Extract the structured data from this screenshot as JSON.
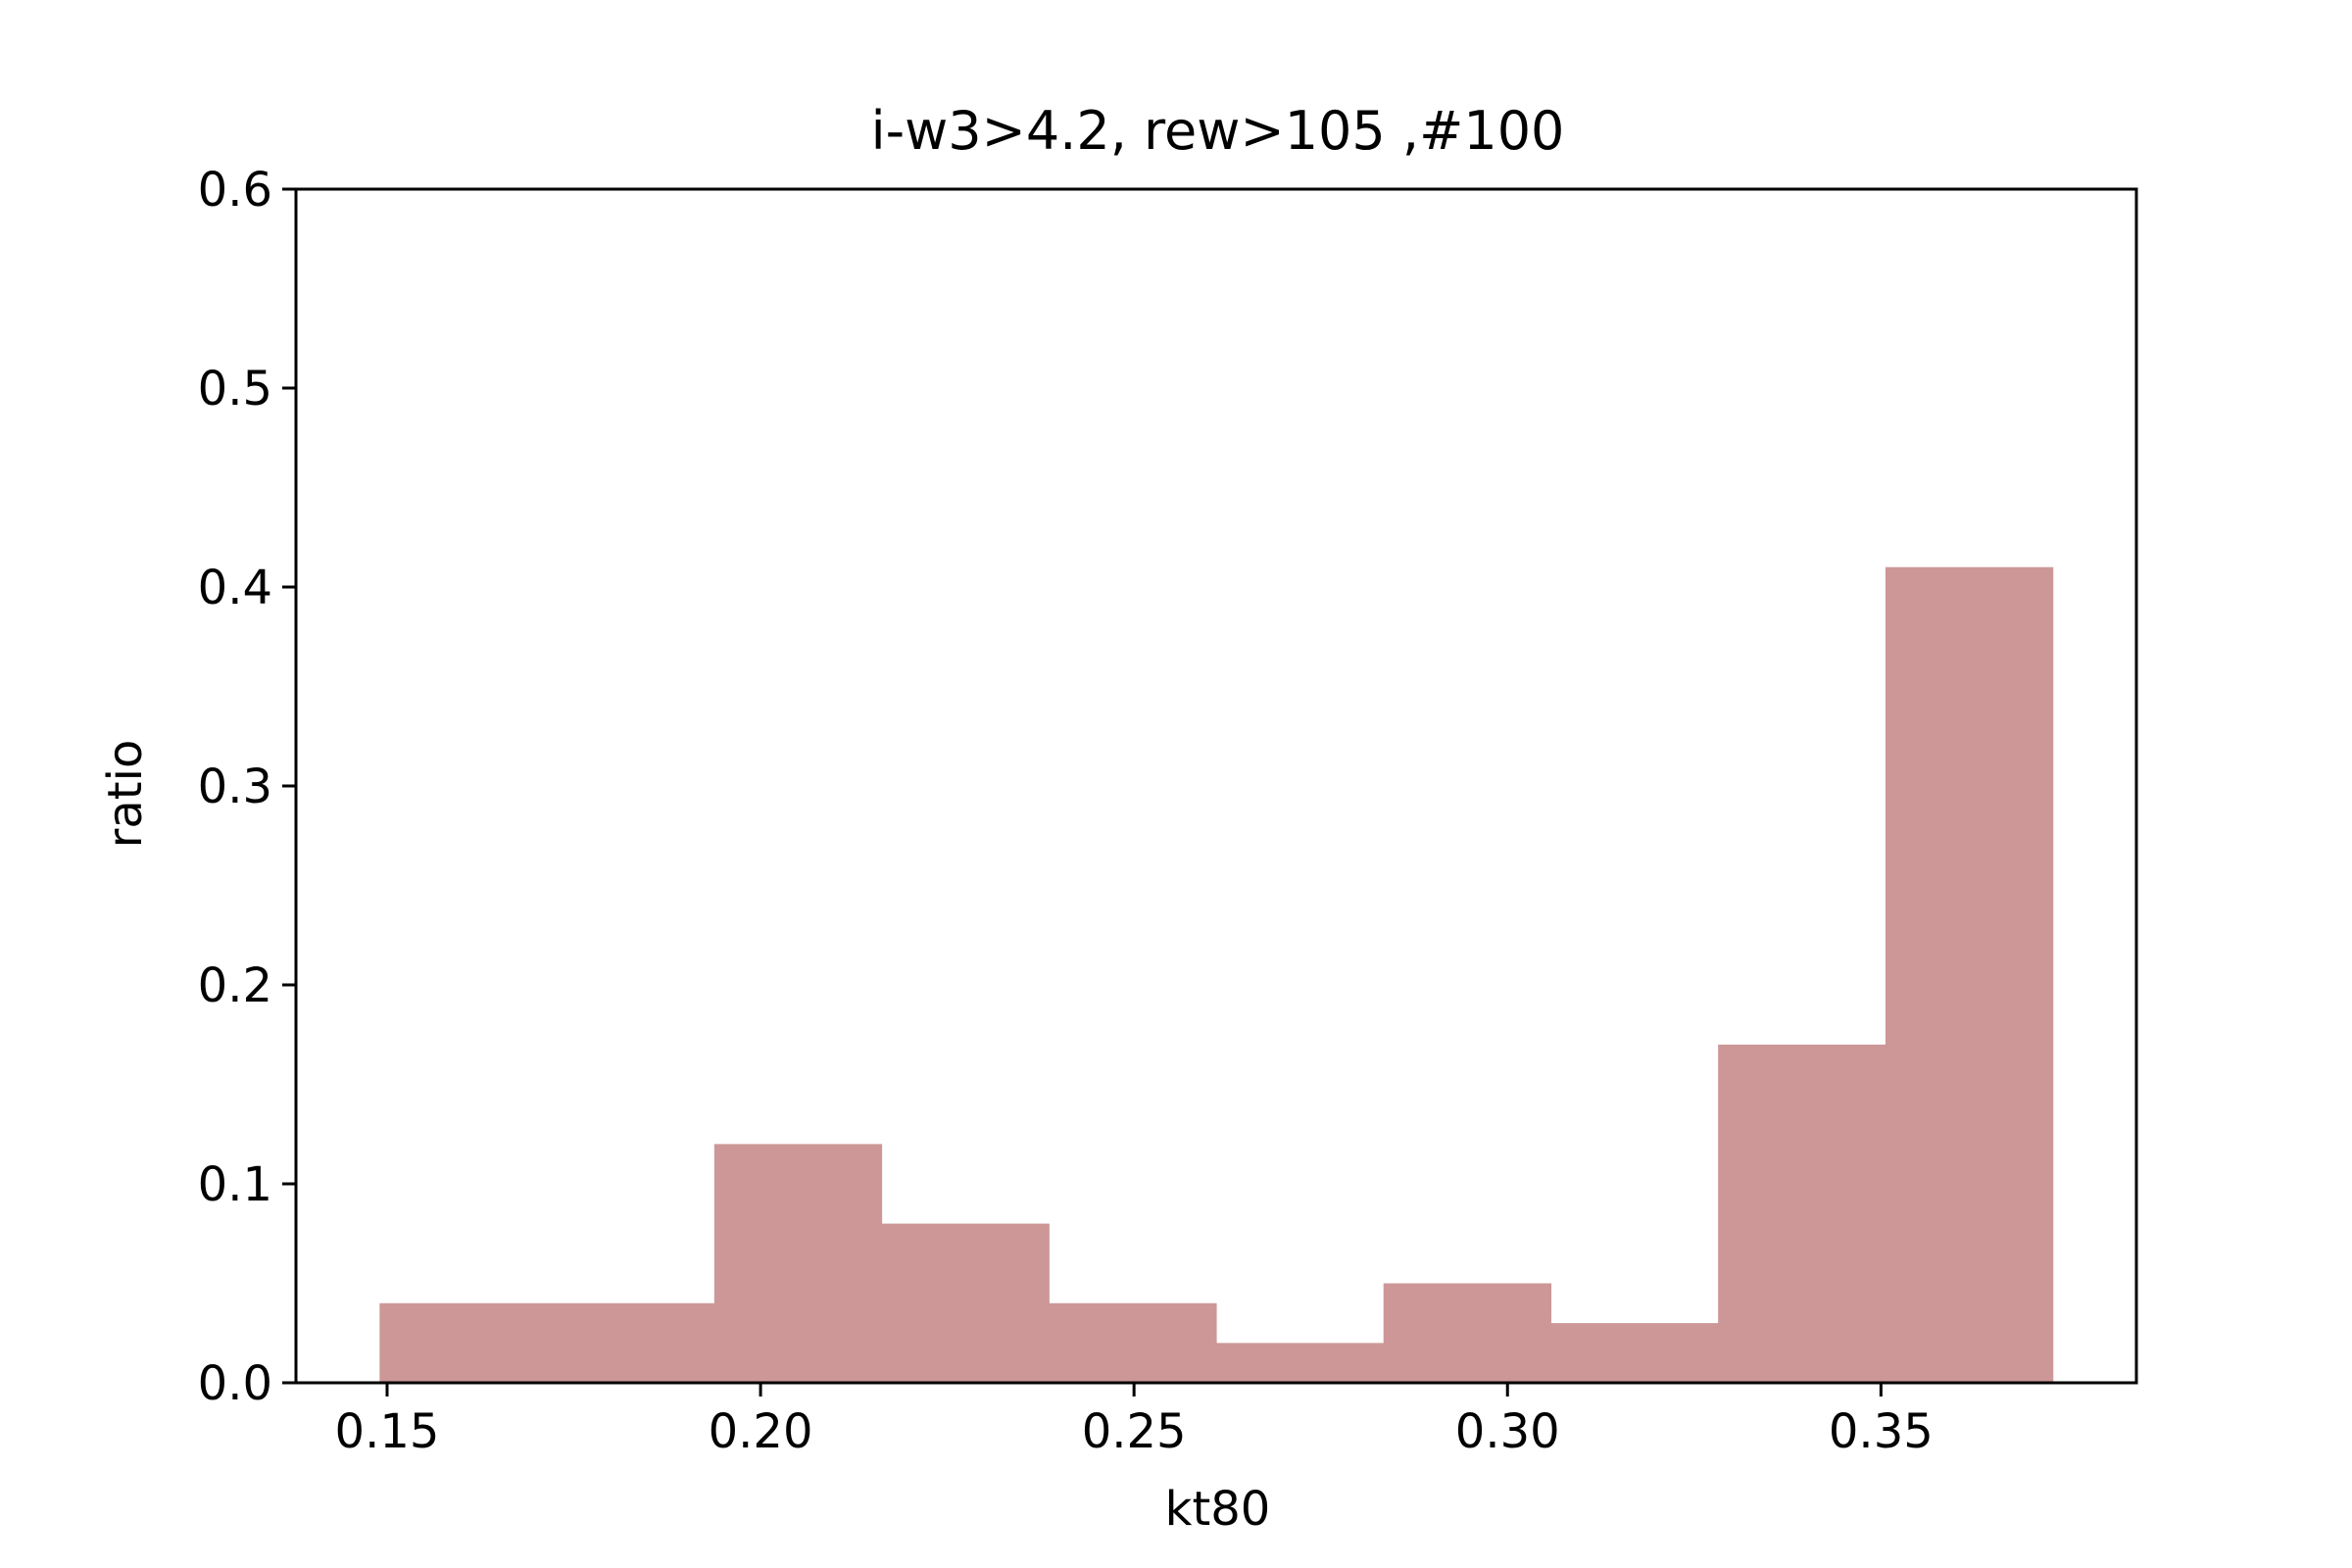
{
  "chart_data": {
    "type": "bar",
    "title": "i-w3>4.2, rew>105 ,#100",
    "xlabel": "kt80",
    "ylabel": "ratio",
    "bin_edges": [
      0.149,
      0.1714,
      0.1938,
      0.2162,
      0.2386,
      0.261,
      0.2834,
      0.3058,
      0.3282,
      0.3506,
      0.373
    ],
    "values": [
      0.04,
      0.04,
      0.12,
      0.08,
      0.04,
      0.02,
      0.05,
      0.03,
      0.17,
      0.41
    ],
    "xlim": [
      0.1378,
      0.3842
    ],
    "ylim": [
      0.0,
      0.6
    ],
    "xticks": [
      0.15,
      0.2,
      0.25,
      0.3,
      0.35
    ],
    "xtick_labels": [
      "0.15",
      "0.20",
      "0.25",
      "0.30",
      "0.35"
    ],
    "yticks": [
      0.0,
      0.1,
      0.2,
      0.3,
      0.4,
      0.5,
      0.6
    ],
    "ytick_labels": [
      "0.0",
      "0.1",
      "0.2",
      "0.3",
      "0.4",
      "0.5",
      "0.6"
    ],
    "bar_color": "#cd9797",
    "grid": false,
    "legend": "none"
  }
}
